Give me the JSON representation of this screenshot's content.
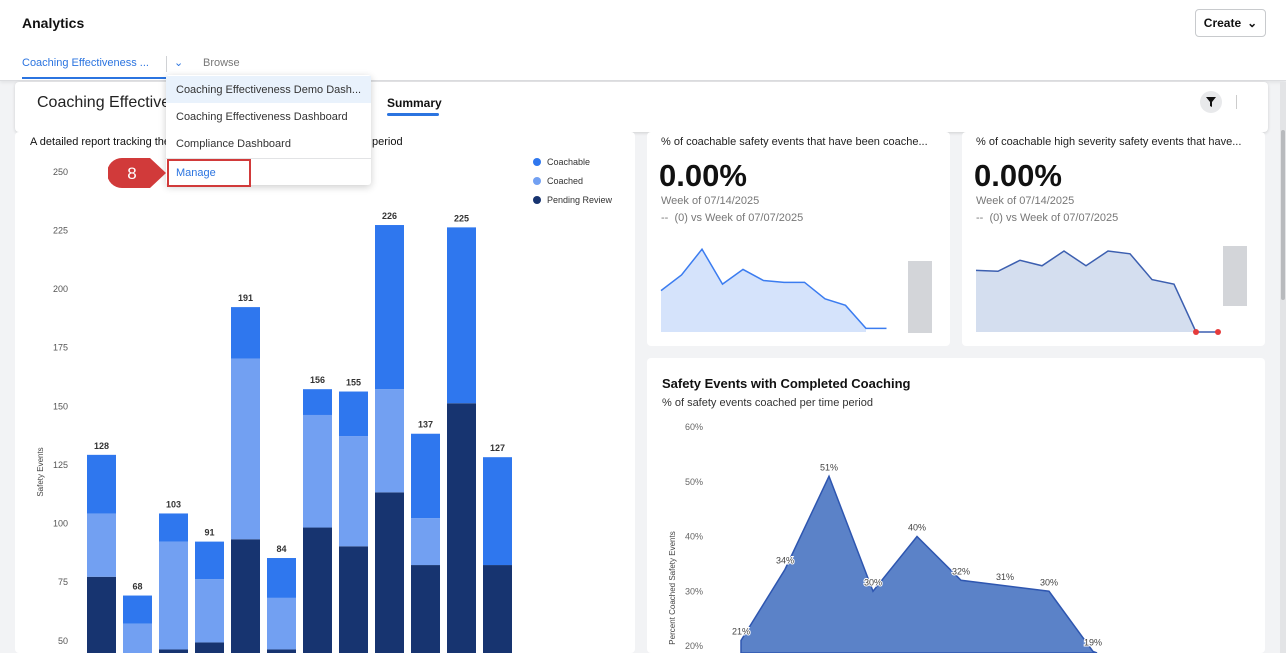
{
  "header": {
    "title": "Analytics",
    "create_label": "Create",
    "active_tab": "Coaching Effectiveness ...",
    "browse_label": "Browse"
  },
  "dashboard": {
    "title": "Coaching Effectiveness Demo Dashboard",
    "summary_tab": "Summary"
  },
  "dropdown": {
    "items": [
      "Coaching Effectiveness Demo Dash...",
      "Coaching Effectiveness Dashboard",
      "Compliance Dashboard"
    ],
    "manage": "Manage"
  },
  "callout": {
    "step": "8",
    "color": "#d13a3a"
  },
  "bar_card": {
    "desc_left": "A detailed report tracking the",
    "desc_right": "period"
  },
  "kpis": [
    {
      "title": "% of coachable safety events that have been coache...",
      "value": "0.00%",
      "week": "Week of 07/14/2025",
      "compare": "--  (0) vs Week of 07/07/2025",
      "trend": [
        45,
        62,
        90,
        52,
        68,
        56,
        54,
        54,
        36,
        29,
        4,
        4
      ]
    },
    {
      "title": "% of coachable high severity safety events that have...",
      "value": "0.00%",
      "week": "Week of 07/14/2025",
      "compare": "--  (0) vs Week of 07/07/2025",
      "trend": [
        67,
        66,
        78,
        72,
        88,
        72,
        88,
        85,
        57,
        52,
        0,
        0
      ]
    }
  ],
  "area_card": {
    "title": "Safety Events with Completed Coaching",
    "subtitle": "% of safety events coached per time period"
  },
  "colors": {
    "accent": "#2b74e0",
    "coachable": "#2f77ee",
    "coached": "#72a0f2",
    "pending": "#173470",
    "area": "#5b82c8"
  },
  "chart_data": [
    {
      "type": "bar",
      "stacked": true,
      "ylabel": "Safety Events",
      "yticks": [
        50,
        75,
        100,
        125,
        150,
        175,
        200,
        225,
        250
      ],
      "legend": "top-right",
      "totals": [
        128,
        68,
        103,
        91,
        191,
        84,
        156,
        155,
        226,
        137,
        225,
        127
      ],
      "series": [
        {
          "name": "Pending Review",
          "values": [
            76,
            40,
            45,
            48,
            92,
            45,
            97,
            89,
            112,
            81,
            150,
            81
          ]
        },
        {
          "name": "Coached",
          "values": [
            27,
            16,
            46,
            27,
            77,
            22,
            48,
            47,
            44,
            20,
            0,
            0
          ]
        },
        {
          "name": "Coachable",
          "values": [
            25,
            12,
            12,
            16,
            22,
            17,
            11,
            19,
            70,
            36,
            75,
            46
          ]
        }
      ]
    },
    {
      "type": "area",
      "ylabel": "Percent Coached Safety Events",
      "yticks": [
        "20%",
        "30%",
        "40%",
        "50%",
        "60%"
      ],
      "values": [
        21,
        34,
        51,
        30,
        40,
        32,
        31,
        30,
        19
      ],
      "labels": [
        "21%",
        "34%",
        "51%",
        "30%",
        "40%",
        "32%",
        "31%",
        "30%",
        "19%"
      ]
    }
  ]
}
